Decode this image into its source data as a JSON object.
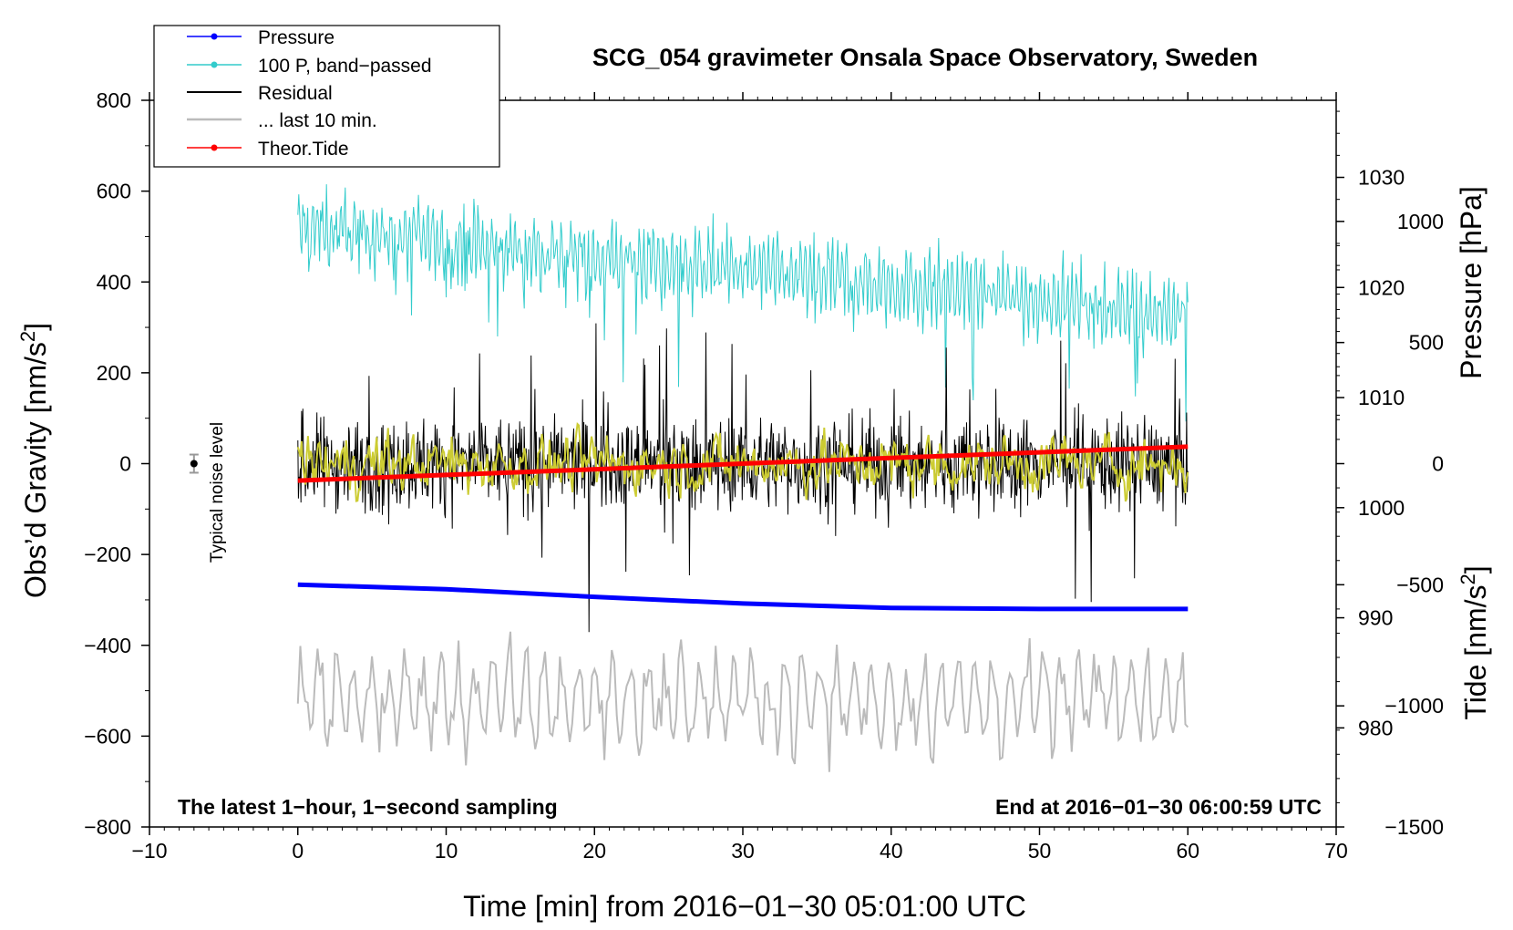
{
  "chart_data": {
    "type": "line",
    "title": "SCG_054 gravimeter Onsala Space Observatory, Sweden",
    "xlabel": "Time [min] from 2016−01−30 05:01:00 UTC",
    "ylabel_left": "Obs’d Gravity [nm/s",
    "ylabel_left_sup": "2",
    "ylabel_left_end": "]",
    "ylabel_right_pressure": "Pressure [hPa]",
    "ylabel_right_tide": "Tide [nm/s",
    "ylabel_right_tide_sup": "2",
    "ylabel_right_tide_end": "]",
    "xlim": [
      -10,
      70
    ],
    "ylim": [
      -800,
      800
    ],
    "pressure_ylim": [
      971,
      1037
    ],
    "tide_ylim": [
      -1500,
      1500
    ],
    "x_ticks": [
      {
        "v": -10,
        "label": "−10"
      },
      {
        "v": 0,
        "label": "0"
      },
      {
        "v": 10,
        "label": "10"
      },
      {
        "v": 20,
        "label": "20"
      },
      {
        "v": 30,
        "label": "30"
      },
      {
        "v": 40,
        "label": "40"
      },
      {
        "v": 50,
        "label": "50"
      },
      {
        "v": 60,
        "label": "60"
      },
      {
        "v": 70,
        "label": "70"
      }
    ],
    "y_ticks": [
      {
        "v": 800,
        "label": "800"
      },
      {
        "v": 600,
        "label": "600"
      },
      {
        "v": 400,
        "label": "400"
      },
      {
        "v": 200,
        "label": "200"
      },
      {
        "v": 0,
        "label": "0"
      },
      {
        "v": -200,
        "label": "−200"
      },
      {
        "v": -400,
        "label": "−400"
      },
      {
        "v": -600,
        "label": "−600"
      },
      {
        "v": -800,
        "label": "−800"
      }
    ],
    "pressure_ticks": [
      {
        "v": 1030,
        "label": "1030"
      },
      {
        "v": 1020,
        "label": "1020"
      },
      {
        "v": 1010,
        "label": "1010"
      },
      {
        "v": 1000,
        "label": "1000"
      },
      {
        "v": 990,
        "label": "990"
      },
      {
        "v": 980,
        "label": "980"
      }
    ],
    "tide_ticks": [
      {
        "v": 1000,
        "label": "1000"
      },
      {
        "v": 500,
        "label": "500"
      },
      {
        "v": 0,
        "label": "0"
      },
      {
        "v": -500,
        "label": "−500"
      },
      {
        "v": -1000,
        "label": "−1000"
      },
      {
        "v": -1500,
        "label": "−1500"
      }
    ],
    "series": [
      {
        "name": "Pressure",
        "color": "#0000ff",
        "axis": "pressure",
        "x": [
          0,
          10,
          20,
          30,
          40,
          50,
          60
        ],
        "values": [
          993.0,
          992.6,
          991.9,
          991.3,
          990.9,
          990.8,
          990.8
        ]
      },
      {
        "name": "100 P, band−passed",
        "color": "#33cccc",
        "axis": "left",
        "center_start": 520,
        "center_end": 330,
        "amplitude": 120,
        "x": [
          0,
          60
        ]
      },
      {
        "name": "Residual",
        "color": "#000000",
        "axis": "left",
        "center": 0,
        "amplitude": 180,
        "x": [
          0,
          60
        ]
      },
      {
        "name": "... last 10 min.",
        "color": "#bbbbbb",
        "axis": "left",
        "center": -520,
        "amplitude": 130,
        "x": [
          0,
          60
        ]
      },
      {
        "name": "Theor.Tide",
        "color": "#ff0000",
        "axis": "tide",
        "x": [
          0,
          60
        ],
        "values": [
          -70,
          70
        ]
      },
      {
        "name": "Residual (smoothed)",
        "color": "#cccc33",
        "axis": "left",
        "center": 0,
        "amplitude": 60,
        "x": [
          0,
          60
        ]
      }
    ],
    "noise_marker": {
      "x": -7,
      "value": 0,
      "error": 20,
      "label": "Typical noise level"
    },
    "annotations": {
      "bottom_left": "The latest 1−hour, 1−second sampling",
      "bottom_right": "End at 2016−01−30 06:00:59 UTC"
    },
    "legend": [
      "Pressure",
      "100 P, band−passed",
      "Residual",
      "... last 10 min.",
      "Theor.Tide"
    ]
  }
}
